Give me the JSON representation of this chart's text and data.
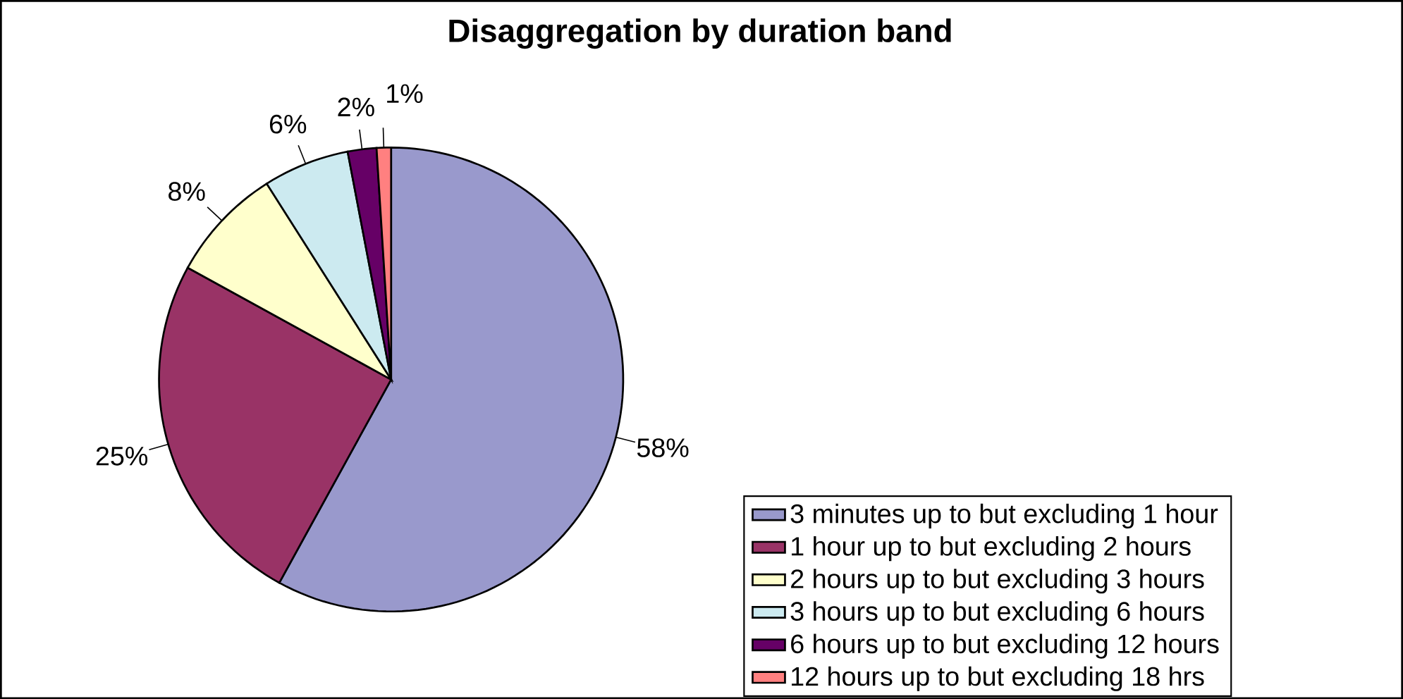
{
  "chart_data": {
    "type": "pie",
    "title": "Disaggregation by duration band",
    "categories": [
      "3 minutes up to but excluding 1 hour",
      "1 hour up to but excluding 2 hours",
      "2 hours up to but excluding 3 hours",
      "3 hours up to but excluding 6 hours",
      "6 hours up to but excluding 12 hours",
      "12 hours up to but excluding 18 hrs"
    ],
    "values": [
      58,
      25,
      8,
      6,
      2,
      1
    ],
    "colors": [
      "#9999cc",
      "#993366",
      "#ffffcc",
      "#cceaf0",
      "#660066",
      "#ff8080"
    ],
    "value_labels": [
      "58%",
      "25%",
      "8%",
      "6%",
      "2%",
      "1%"
    ],
    "legend": "bottom right"
  }
}
